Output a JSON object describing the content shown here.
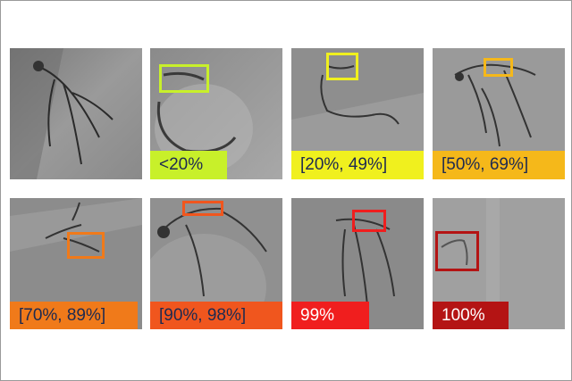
{
  "panels": [
    {
      "id": "p1",
      "label": "",
      "color": "",
      "label_text_color": ""
    },
    {
      "id": "p2",
      "label": "<20%",
      "color": "#c8f02a",
      "label_text_color": "#1e2a50"
    },
    {
      "id": "p3",
      "label": "[20%, 49%]",
      "color": "#f0f01e",
      "label_text_color": "#1e2a50"
    },
    {
      "id": "p4",
      "label": "[50%, 69%]",
      "color": "#f5b81a",
      "label_text_color": "#1e2a50"
    },
    {
      "id": "p5",
      "label": "[70%, 89%]",
      "color": "#f07a1a",
      "label_text_color": "#1e2a50"
    },
    {
      "id": "p6",
      "label": "[90%, 98%]",
      "color": "#f0561e",
      "label_text_color": "#1e2a50"
    },
    {
      "id": "p7",
      "label": "99%",
      "color": "#f01e1e",
      "label_text_color": "#ffffff"
    },
    {
      "id": "p8",
      "label": "100%",
      "color": "#b41414",
      "label_text_color": "#ffffff"
    }
  ]
}
